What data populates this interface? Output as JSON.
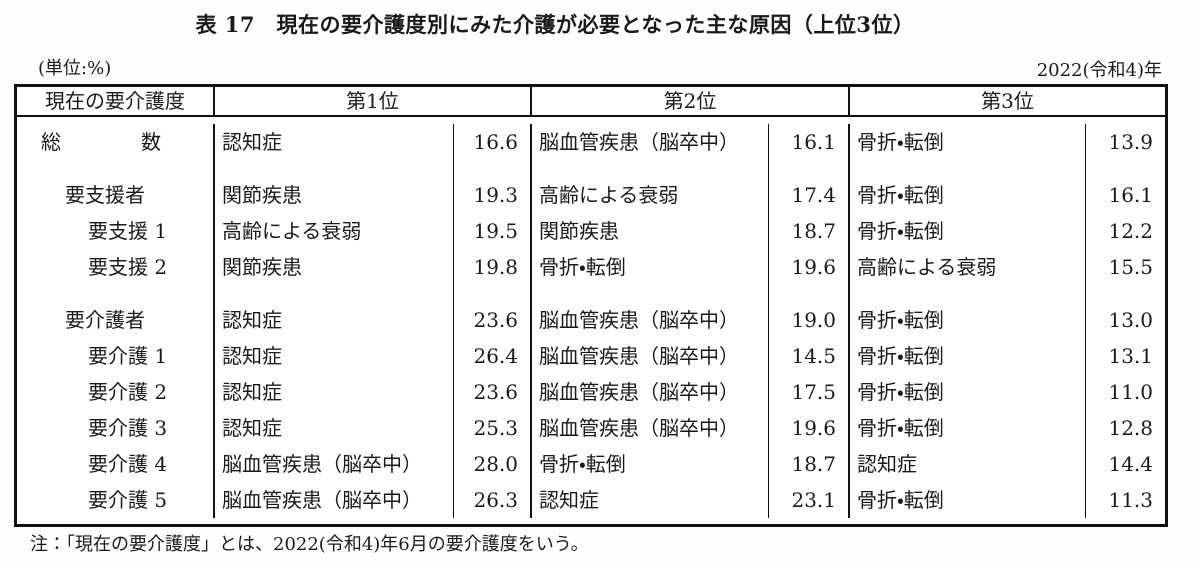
{
  "page": {
    "title": "表 17　現在の要介護度別にみた介護が必要となった主な原因（上位3位）",
    "unit_label": "(単位:%)",
    "year_label": "2022(令和4)年",
    "footnote": "注：「現在の要介護度」とは、2022(令和4)年6月の要介護度をいう。"
  },
  "colors": {
    "text": "#1a1a1a",
    "border": "#111111",
    "background": "#ffffff"
  },
  "table": {
    "headers": {
      "level": "現在の要介護度",
      "rank1": "第1位",
      "rank2": "第2位",
      "rank3": "第3位"
    },
    "rows": [
      {
        "level": "総数",
        "spread": true,
        "indent": 0,
        "rank1": {
          "cause": "認知症",
          "value": "16.6"
        },
        "rank2": {
          "cause": "脳血管疾患（脳卒中）",
          "value": "16.1"
        },
        "rank3": {
          "cause": "骨折・転倒",
          "value": "13.9"
        }
      },
      {
        "spacer": true
      },
      {
        "level": "要支援者",
        "indent": 1,
        "rank1": {
          "cause": "関節疾患",
          "value": "19.3"
        },
        "rank2": {
          "cause": "高齢による衰弱",
          "value": "17.4"
        },
        "rank3": {
          "cause": "骨折・転倒",
          "value": "16.1"
        }
      },
      {
        "level": "要支援 1",
        "indent": 2,
        "rank1": {
          "cause": "高齢による衰弱",
          "value": "19.5"
        },
        "rank2": {
          "cause": "関節疾患",
          "value": "18.7"
        },
        "rank3": {
          "cause": "骨折・転倒",
          "value": "12.2"
        }
      },
      {
        "level": "要支援 2",
        "indent": 2,
        "rank1": {
          "cause": "関節疾患",
          "value": "19.8"
        },
        "rank2": {
          "cause": "骨折・転倒",
          "value": "19.6"
        },
        "rank3": {
          "cause": "高齢による衰弱",
          "value": "15.5"
        }
      },
      {
        "spacer": true
      },
      {
        "level": "要介護者",
        "indent": 1,
        "rank1": {
          "cause": "認知症",
          "value": "23.6"
        },
        "rank2": {
          "cause": "脳血管疾患（脳卒中）",
          "value": "19.0"
        },
        "rank3": {
          "cause": "骨折・転倒",
          "value": "13.0"
        }
      },
      {
        "level": "要介護 1",
        "indent": 2,
        "rank1": {
          "cause": "認知症",
          "value": "26.4"
        },
        "rank2": {
          "cause": "脳血管疾患（脳卒中）",
          "value": "14.5"
        },
        "rank3": {
          "cause": "骨折・転倒",
          "value": "13.1"
        }
      },
      {
        "level": "要介護 2",
        "indent": 2,
        "rank1": {
          "cause": "認知症",
          "value": "23.6"
        },
        "rank2": {
          "cause": "脳血管疾患（脳卒中）",
          "value": "17.5"
        },
        "rank3": {
          "cause": "骨折・転倒",
          "value": "11.0"
        }
      },
      {
        "level": "要介護 3",
        "indent": 2,
        "rank1": {
          "cause": "認知症",
          "value": "25.3"
        },
        "rank2": {
          "cause": "脳血管疾患（脳卒中）",
          "value": "19.6"
        },
        "rank3": {
          "cause": "骨折・転倒",
          "value": "12.8"
        }
      },
      {
        "level": "要介護 4",
        "indent": 2,
        "rank1": {
          "cause": "脳血管疾患（脳卒中）",
          "value": "28.0"
        },
        "rank2": {
          "cause": "骨折・転倒",
          "value": "18.7"
        },
        "rank3": {
          "cause": "認知症",
          "value": "14.4"
        }
      },
      {
        "level": "要介護 5",
        "indent": 2,
        "rank1": {
          "cause": "脳血管疾患（脳卒中）",
          "value": "26.3"
        },
        "rank2": {
          "cause": "認知症",
          "value": "23.1"
        },
        "rank3": {
          "cause": "骨折・転倒",
          "value": "11.3"
        }
      }
    ]
  }
}
